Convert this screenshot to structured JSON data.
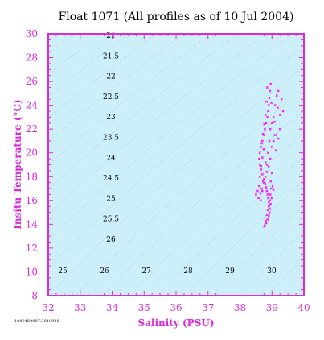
{
  "chart_data": {
    "type": "scatter",
    "title": "Float 1071  (All profiles as of 10 Jul 2004)",
    "xlabel": "Salinity (PSU)",
    "ylabel": "Insitu Temperature (°C)",
    "xlim": [
      32,
      40
    ],
    "ylim": [
      8,
      30
    ],
    "x_ticks": [
      "32",
      "33",
      "34",
      "35",
      "36",
      "37",
      "38",
      "39",
      "40"
    ],
    "y_ticks": [
      "8",
      "10",
      "12",
      "14",
      "16",
      "18",
      "20",
      "22",
      "24",
      "26",
      "28",
      "30"
    ],
    "grid": false,
    "colors": {
      "marker": "#ff00ff",
      "axis": "#d92bd9",
      "plot_background": "#cdeffa",
      "isopycnal": "#a8b8c4"
    },
    "isopycnal_labels": {
      "top_column": [
        "21",
        "21.5",
        "22",
        "22.5",
        "23",
        "23.5",
        "24",
        "24.5",
        "25",
        "25.5",
        "26"
      ],
      "bottom_row": [
        "25",
        "26",
        "27",
        "28",
        "29",
        "30"
      ]
    },
    "series": [
      {
        "points": [
          [
            38.78,
            13.9
          ],
          [
            38.82,
            14.1
          ],
          [
            38.86,
            14.4
          ],
          [
            38.9,
            14.7
          ],
          [
            38.92,
            15.0
          ],
          [
            38.93,
            15.3
          ],
          [
            38.92,
            15.6
          ],
          [
            38.9,
            15.9
          ],
          [
            38.88,
            16.2
          ],
          [
            38.86,
            16.5
          ],
          [
            38.84,
            16.8
          ],
          [
            38.82,
            17.1
          ],
          [
            38.79,
            17.4
          ],
          [
            38.75,
            17.8
          ],
          [
            38.7,
            18.2
          ],
          [
            38.66,
            18.6
          ],
          [
            38.62,
            19.0
          ],
          [
            38.6,
            19.5
          ],
          [
            38.62,
            20.0
          ],
          [
            38.65,
            20.5
          ],
          [
            38.7,
            21.0
          ],
          [
            38.74,
            21.5
          ],
          [
            38.78,
            22.0
          ],
          [
            38.82,
            22.5
          ],
          [
            38.86,
            23.0
          ],
          [
            38.88,
            23.5
          ],
          [
            38.9,
            24.0
          ],
          [
            38.92,
            24.6
          ],
          [
            38.94,
            25.2
          ],
          [
            38.96,
            25.8
          ],
          [
            39.05,
            23.0
          ],
          [
            39.1,
            24.0
          ],
          [
            39.15,
            24.8
          ],
          [
            39.2,
            25.2
          ],
          [
            39.3,
            24.5
          ],
          [
            39.35,
            23.5
          ],
          [
            39.25,
            22.0
          ],
          [
            39.1,
            21.5
          ],
          [
            39.0,
            20.5
          ],
          [
            38.95,
            19.5
          ],
          [
            38.9,
            18.8
          ],
          [
            39.0,
            18.3
          ],
          [
            38.6,
            17.2
          ],
          [
            38.55,
            16.8
          ],
          [
            38.5,
            16.5
          ],
          [
            38.65,
            16.0
          ],
          [
            38.7,
            16.8
          ],
          [
            38.75,
            17.5
          ],
          [
            38.8,
            18.0
          ],
          [
            38.85,
            19.0
          ],
          [
            38.88,
            20.0
          ],
          [
            38.92,
            21.0
          ],
          [
            38.95,
            22.0
          ],
          [
            39.0,
            22.5
          ],
          [
            39.05,
            21.0
          ],
          [
            38.98,
            17.0
          ],
          [
            38.95,
            16.5
          ],
          [
            38.94,
            16.0
          ],
          [
            38.9,
            15.5
          ],
          [
            38.87,
            15.2
          ],
          [
            38.84,
            14.8
          ],
          [
            38.8,
            14.3
          ],
          [
            38.76,
            13.8
          ],
          [
            38.72,
            17.6
          ],
          [
            38.68,
            17.0
          ],
          [
            38.64,
            16.6
          ],
          [
            38.58,
            16.2
          ],
          [
            38.62,
            18.0
          ],
          [
            38.66,
            18.9
          ],
          [
            38.7,
            19.6
          ],
          [
            38.74,
            20.3
          ],
          [
            38.8,
            19.2
          ],
          [
            38.84,
            18.4
          ],
          [
            38.96,
            17.6
          ],
          [
            39.02,
            17.2
          ],
          [
            39.05,
            16.9
          ],
          [
            38.99,
            16.2
          ],
          [
            38.96,
            15.7
          ],
          [
            39.12,
            20.2
          ],
          [
            39.2,
            21.2
          ],
          [
            39.25,
            23.2
          ],
          [
            39.18,
            23.8
          ],
          [
            39.08,
            22.6
          ],
          [
            38.98,
            24.2
          ],
          [
            38.85,
            25.5
          ],
          [
            38.83,
            24.3
          ],
          [
            38.8,
            23.2
          ],
          [
            38.76,
            22.4
          ],
          [
            38.72,
            21.6
          ],
          [
            38.68,
            20.8
          ]
        ]
      }
    ]
  },
  "footnote": "1089460097.3919028"
}
